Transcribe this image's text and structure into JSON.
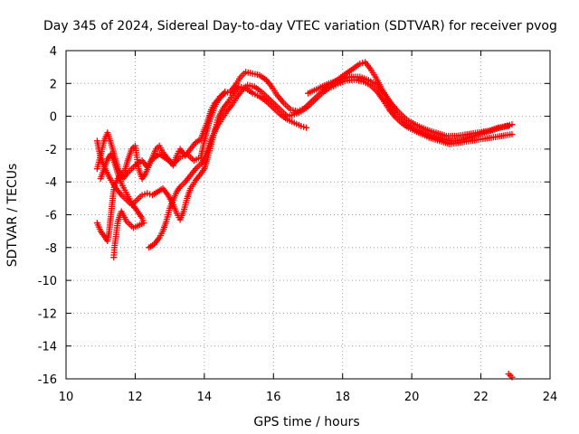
{
  "chart_data": {
    "type": "scatter",
    "title": "Day 345 of 2024, Sidereal Day-to-day VTEC variation (SDTVAR) for receiver pvog",
    "xlabel": "GPS time / hours",
    "ylabel": "SDTVAR / TECUs",
    "xlim": [
      10,
      24
    ],
    "ylim": [
      -16,
      4
    ],
    "xticks": [
      10,
      12,
      14,
      16,
      18,
      20,
      22,
      24
    ],
    "yticks": [
      4,
      2,
      0,
      -2,
      -4,
      -6,
      -8,
      -10,
      -12,
      -14,
      -16
    ],
    "grid": true,
    "marker": "+",
    "color": "#ff0000",
    "series": [
      {
        "name": "track-1",
        "points": [
          [
            10.9,
            -3.2
          ],
          [
            11.0,
            -2.4
          ],
          [
            11.1,
            -1.5
          ],
          [
            11.2,
            -1.0
          ],
          [
            11.35,
            -2.0
          ],
          [
            11.5,
            -3.2
          ],
          [
            11.65,
            -3.8
          ],
          [
            11.8,
            -3.4
          ],
          [
            12.0,
            -3.0
          ],
          [
            12.2,
            -2.7
          ],
          [
            12.35,
            -3.1
          ],
          [
            12.5,
            -2.6
          ],
          [
            12.7,
            -2.3
          ],
          [
            12.9,
            -2.6
          ],
          [
            13.1,
            -2.9
          ],
          [
            13.3,
            -2.5
          ],
          [
            13.5,
            -2.3
          ],
          [
            13.7,
            -2.7
          ],
          [
            13.9,
            -2.5
          ],
          [
            14.0,
            -1.5
          ],
          [
            14.15,
            -0.3
          ],
          [
            14.3,
            0.6
          ],
          [
            14.45,
            1.2
          ],
          [
            14.6,
            1.4
          ],
          [
            14.75,
            1.5
          ],
          [
            14.9,
            1.9
          ],
          [
            15.05,
            2.4
          ],
          [
            15.2,
            2.7
          ],
          [
            15.4,
            2.6
          ],
          [
            15.6,
            2.5
          ],
          [
            15.8,
            2.2
          ],
          [
            15.95,
            1.8
          ],
          [
            16.1,
            1.3
          ],
          [
            16.3,
            0.8
          ],
          [
            16.5,
            0.4
          ],
          [
            16.7,
            0.3
          ],
          [
            16.9,
            0.5
          ],
          [
            17.1,
            0.9
          ],
          [
            17.3,
            1.3
          ],
          [
            17.5,
            1.7
          ],
          [
            17.7,
            2.0
          ],
          [
            17.9,
            2.3
          ],
          [
            18.1,
            2.6
          ],
          [
            18.3,
            2.9
          ],
          [
            18.5,
            3.2
          ],
          [
            18.65,
            3.3
          ],
          [
            18.8,
            2.9
          ],
          [
            18.95,
            2.4
          ],
          [
            19.1,
            1.8
          ],
          [
            19.25,
            1.2
          ],
          [
            19.4,
            0.6
          ],
          [
            19.55,
            0.1
          ],
          [
            19.75,
            -0.3
          ],
          [
            20.0,
            -0.7
          ],
          [
            20.3,
            -1.0
          ],
          [
            20.6,
            -1.2
          ],
          [
            20.9,
            -1.4
          ],
          [
            21.2,
            -1.5
          ],
          [
            21.5,
            -1.4
          ],
          [
            21.8,
            -1.2
          ],
          [
            22.1,
            -1.0
          ],
          [
            22.4,
            -0.8
          ],
          [
            22.7,
            -0.6
          ],
          [
            22.9,
            -0.5
          ]
        ]
      },
      {
        "name": "track-2",
        "points": [
          [
            10.9,
            -1.5
          ],
          [
            11.0,
            -2.5
          ],
          [
            11.15,
            -3.3
          ],
          [
            11.3,
            -3.9
          ],
          [
            11.45,
            -4.4
          ],
          [
            11.6,
            -4.8
          ],
          [
            11.75,
            -5.1
          ],
          [
            11.9,
            -5.4
          ],
          [
            12.05,
            -5.1
          ],
          [
            12.2,
            -4.8
          ],
          [
            12.35,
            -4.7
          ],
          [
            12.5,
            -4.8
          ],
          [
            12.65,
            -4.6
          ],
          [
            12.8,
            -4.4
          ],
          [
            12.95,
            -4.8
          ],
          [
            13.1,
            -5.4
          ],
          [
            13.2,
            -5.9
          ],
          [
            13.3,
            -6.3
          ],
          [
            13.4,
            -5.8
          ],
          [
            13.5,
            -5.0
          ],
          [
            13.6,
            -4.4
          ],
          [
            13.75,
            -3.9
          ],
          [
            13.9,
            -3.5
          ],
          [
            14.0,
            -3.2
          ],
          [
            14.1,
            -2.5
          ],
          [
            14.2,
            -1.7
          ],
          [
            14.3,
            -0.9
          ],
          [
            14.4,
            -0.1
          ],
          [
            14.55,
            0.5
          ],
          [
            14.7,
            0.9
          ],
          [
            14.85,
            1.4
          ],
          [
            15.0,
            1.8
          ],
          [
            15.2,
            1.7
          ],
          [
            15.4,
            1.4
          ],
          [
            15.6,
            1.2
          ],
          [
            15.8,
            0.9
          ],
          [
            16.0,
            0.5
          ],
          [
            16.2,
            0.1
          ],
          [
            16.4,
            -0.2
          ],
          [
            16.6,
            -0.4
          ],
          [
            16.8,
            -0.6
          ],
          [
            16.95,
            -0.7
          ]
        ]
      },
      {
        "name": "track-3",
        "points": [
          [
            10.9,
            -6.5
          ],
          [
            11.0,
            -7.0
          ],
          [
            11.1,
            -7.3
          ],
          [
            11.2,
            -7.6
          ],
          [
            11.25,
            -7.0
          ],
          [
            11.3,
            -6.0
          ],
          [
            11.35,
            -5.0
          ],
          [
            11.4,
            -4.2
          ],
          [
            11.5,
            -3.8
          ],
          [
            11.6,
            -3.5
          ],
          [
            11.7,
            -3.3
          ],
          [
            11.8,
            -2.6
          ],
          [
            11.9,
            -2.0
          ],
          [
            12.0,
            -1.8
          ],
          [
            12.05,
            -2.5
          ],
          [
            12.1,
            -3.2
          ],
          [
            12.2,
            -3.8
          ],
          [
            12.3,
            -3.5
          ],
          [
            12.4,
            -3.0
          ],
          [
            12.5,
            -2.5
          ],
          [
            12.6,
            -2.0
          ],
          [
            12.7,
            -1.8
          ],
          [
            12.8,
            -2.2
          ],
          [
            12.95,
            -2.6
          ],
          [
            13.1,
            -3.0
          ],
          [
            13.2,
            -2.4
          ],
          [
            13.3,
            -2.0
          ],
          [
            13.45,
            -2.4
          ],
          [
            13.6,
            -2.0
          ],
          [
            13.75,
            -1.6
          ],
          [
            13.9,
            -1.4
          ],
          [
            14.0,
            -0.8
          ],
          [
            14.1,
            -0.3
          ],
          [
            14.2,
            0.4
          ],
          [
            14.3,
            0.8
          ],
          [
            14.45,
            1.1
          ],
          [
            14.6,
            1.5
          ]
        ]
      },
      {
        "name": "track-4",
        "points": [
          [
            11.0,
            -3.8
          ],
          [
            11.1,
            -3.2
          ],
          [
            11.2,
            -2.6
          ],
          [
            11.3,
            -2.3
          ],
          [
            11.4,
            -2.8
          ],
          [
            11.5,
            -3.5
          ],
          [
            11.6,
            -4.1
          ],
          [
            11.7,
            -4.5
          ],
          [
            11.8,
            -4.9
          ],
          [
            11.9,
            -5.3
          ],
          [
            12.0,
            -5.6
          ],
          [
            12.1,
            -5.9
          ],
          [
            12.2,
            -6.2
          ],
          [
            12.25,
            -6.5
          ],
          [
            11.95,
            -6.8
          ],
          [
            11.75,
            -6.4
          ],
          [
            11.6,
            -5.8
          ],
          [
            11.5,
            -6.4
          ],
          [
            11.45,
            -7.2
          ],
          [
            11.4,
            -8.0
          ],
          [
            11.38,
            -8.6
          ]
        ]
      },
      {
        "name": "track-5",
        "points": [
          [
            12.4,
            -8.0
          ],
          [
            12.55,
            -7.8
          ],
          [
            12.7,
            -7.4
          ],
          [
            12.8,
            -7.0
          ],
          [
            12.9,
            -6.4
          ],
          [
            13.0,
            -5.6
          ],
          [
            13.1,
            -5.1
          ],
          [
            13.2,
            -4.6
          ],
          [
            13.3,
            -4.3
          ],
          [
            13.45,
            -4.0
          ],
          [
            13.6,
            -3.6
          ],
          [
            13.75,
            -3.2
          ],
          [
            13.9,
            -2.9
          ],
          [
            14.0,
            -2.6
          ],
          [
            14.1,
            -2.0
          ],
          [
            14.2,
            -1.4
          ],
          [
            14.35,
            -0.7
          ],
          [
            14.5,
            -0.2
          ],
          [
            14.65,
            0.3
          ],
          [
            14.8,
            0.7
          ],
          [
            14.95,
            1.2
          ],
          [
            15.1,
            1.6
          ],
          [
            15.25,
            1.9
          ],
          [
            15.45,
            1.8
          ],
          [
            15.65,
            1.5
          ],
          [
            15.85,
            1.1
          ],
          [
            16.0,
            0.8
          ],
          [
            16.2,
            0.4
          ],
          [
            16.4,
            0.0
          ],
          [
            16.6,
            0.1
          ],
          [
            16.8,
            0.3
          ],
          [
            17.0,
            0.6
          ],
          [
            17.2,
            1.0
          ],
          [
            17.4,
            1.4
          ],
          [
            17.6,
            1.7
          ],
          [
            17.8,
            1.9
          ],
          [
            18.0,
            2.1
          ],
          [
            18.2,
            2.2
          ],
          [
            18.4,
            2.2
          ],
          [
            18.6,
            2.1
          ],
          [
            18.8,
            1.9
          ],
          [
            19.0,
            1.5
          ],
          [
            19.2,
            0.9
          ],
          [
            19.35,
            0.4
          ],
          [
            19.5,
            0.0
          ],
          [
            19.7,
            -0.4
          ],
          [
            19.9,
            -0.7
          ],
          [
            20.2,
            -1.0
          ],
          [
            20.5,
            -1.3
          ],
          [
            20.8,
            -1.5
          ],
          [
            21.1,
            -1.7
          ],
          [
            21.4,
            -1.6
          ],
          [
            21.7,
            -1.5
          ],
          [
            22.0,
            -1.4
          ],
          [
            22.3,
            -1.3
          ],
          [
            22.6,
            -1.2
          ],
          [
            22.9,
            -1.1
          ]
        ]
      },
      {
        "name": "track-6",
        "points": [
          [
            17.0,
            1.4
          ],
          [
            17.3,
            1.7
          ],
          [
            17.6,
            2.0
          ],
          [
            17.9,
            2.2
          ],
          [
            18.2,
            2.4
          ],
          [
            18.5,
            2.4
          ],
          [
            18.75,
            2.2
          ],
          [
            19.0,
            1.9
          ],
          [
            19.2,
            1.4
          ],
          [
            19.4,
            0.8
          ],
          [
            19.6,
            0.3
          ],
          [
            19.85,
            -0.2
          ],
          [
            20.1,
            -0.5
          ],
          [
            20.4,
            -0.8
          ],
          [
            20.7,
            -1.0
          ],
          [
            21.0,
            -1.2
          ],
          [
            21.3,
            -1.2
          ],
          [
            21.6,
            -1.1
          ],
          [
            21.9,
            -1.0
          ],
          [
            22.2,
            -0.9
          ],
          [
            22.5,
            -0.7
          ],
          [
            22.8,
            -0.6
          ]
        ]
      },
      {
        "name": "outlier",
        "points": [
          [
            22.8,
            -15.7
          ],
          [
            22.85,
            -15.8
          ],
          [
            22.9,
            -15.9
          ]
        ]
      }
    ]
  }
}
